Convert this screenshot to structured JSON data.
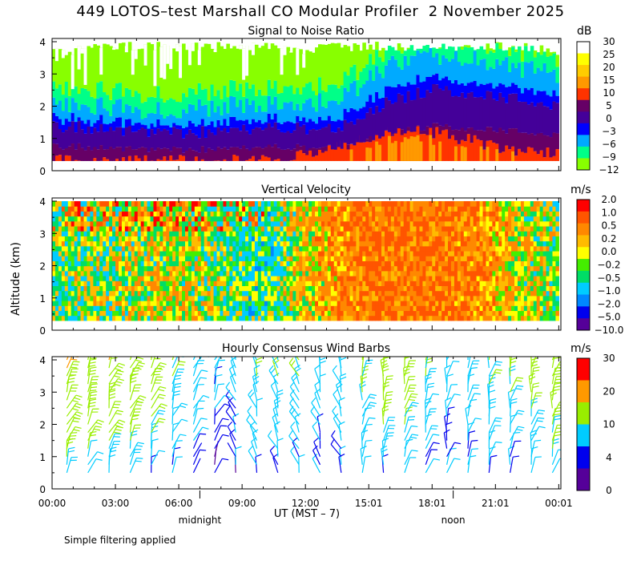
{
  "title": "449 LOTOS–test Marshall CO Modular Profiler  2 November 2025",
  "footer_note": "Simple filtering applied",
  "shared_axes": {
    "ylabel": "Altitude (km)",
    "xlabel": "UT  (MST – 7)",
    "x_ticks": [
      "00:00",
      "03:00",
      "06:00",
      "09:00",
      "12:00",
      "15:01",
      "18:01",
      "21:01",
      "00:01"
    ],
    "x_tick_hours": [
      0,
      3,
      6,
      9,
      12,
      15,
      18,
      21,
      24
    ],
    "markers": [
      {
        "label": "midnight",
        "hour": 7
      },
      {
        "label": "noon",
        "hour": 19
      }
    ],
    "y_ticks": [
      0,
      1,
      2,
      3,
      4
    ],
    "ylim": [
      0,
      4.1
    ],
    "xlim": [
      0,
      24.1
    ]
  },
  "chart_data": [
    {
      "type": "heatmap",
      "title": "Signal to Noise Ratio",
      "unit": "dB",
      "colorbar_labels": [
        "30",
        "25",
        "20",
        "15",
        "10",
        "5",
        "0",
        "−3",
        "−6",
        "−9",
        "−12"
      ],
      "colorbar_colors": [
        "#ffffff",
        "#ffff00",
        "#ffcc00",
        "#ff9900",
        "#ff3300",
        "#660066",
        "#440099",
        "#0000ff",
        "#00aaff",
        "#00ff88",
        "#88ff00"
      ],
      "x_hours": [
        0,
        2,
        4,
        6,
        8,
        10,
        12,
        14,
        16,
        18,
        20,
        22,
        24
      ],
      "boundaries_km": {
        "top_of_data": [
          3.8,
          4.0,
          4.0,
          4.0,
          4.0,
          4.0,
          3.9,
          4.0,
          4.0,
          4.0,
          4.0,
          4.0,
          3.8
        ],
        "snr_5db": [
          1.4,
          1.3,
          1.2,
          1.2,
          1.2,
          1.3,
          1.3,
          1.4,
          2.2,
          2.5,
          2.4,
          2.2,
          2.0
        ],
        "snr_minus6db": [
          2.0,
          2.0,
          1.9,
          1.9,
          2.0,
          2.1,
          2.0,
          2.4,
          3.3,
          3.6,
          3.5,
          3.2,
          3.0
        ],
        "snr_10db": [
          0.3,
          0.3,
          0.3,
          0.3,
          0.3,
          0.3,
          0.5,
          0.8,
          1.2,
          1.2,
          0.9,
          0.6,
          0.5
        ]
      }
    },
    {
      "type": "heatmap",
      "title": "Vertical Velocity",
      "unit": "m/s",
      "colorbar_labels": [
        "2.0",
        "1.0",
        "0.5",
        "0.2",
        "0.0",
        "−0.2",
        "−0.5",
        "−1.0",
        "−2.0",
        "−5.0",
        "−10.0"
      ],
      "colorbar_colors": [
        "#ff0000",
        "#ff5500",
        "#ff8800",
        "#ffbb00",
        "#ffff00",
        "#44ee00",
        "#00dd66",
        "#00ccff",
        "#0088ff",
        "#0000ee",
        "#550099"
      ],
      "x_hours": [
        0,
        2,
        4,
        6,
        8,
        10,
        12,
        14,
        16,
        18,
        20,
        22,
        24
      ],
      "mean_velocity_ms": [
        -0.2,
        -0.1,
        0.1,
        0.2,
        -0.2,
        -0.5,
        0.3,
        0.8,
        1.0,
        1.0,
        0.8,
        0.2,
        -0.1
      ]
    },
    {
      "type": "scatter",
      "title": "Hourly Consensus Wind Barbs",
      "unit": "m/s",
      "colorbar_labels": [
        "30",
        "20",
        "10",
        "4",
        "0"
      ],
      "colorbar_colors": [
        "#ff0000",
        "#ff9900",
        "#99ee00",
        "#00ccff",
        "#0000ee",
        "#550099"
      ],
      "x_hours": [
        1,
        2,
        3,
        4,
        5,
        6,
        7,
        8,
        9,
        10,
        11,
        12,
        13,
        14,
        15,
        16,
        17,
        18,
        19,
        20,
        21,
        22,
        23,
        24
      ],
      "altitudes_km": [
        0.5,
        1.0,
        1.5,
        2.0,
        2.5,
        3.0,
        3.5,
        4.0
      ],
      "speed_ms_at_2km": [
        12,
        10,
        11,
        10,
        8,
        6,
        4,
        3,
        3,
        5,
        6,
        5,
        4,
        5,
        6,
        8,
        9,
        6,
        4,
        5,
        6,
        7,
        8,
        10
      ]
    }
  ]
}
